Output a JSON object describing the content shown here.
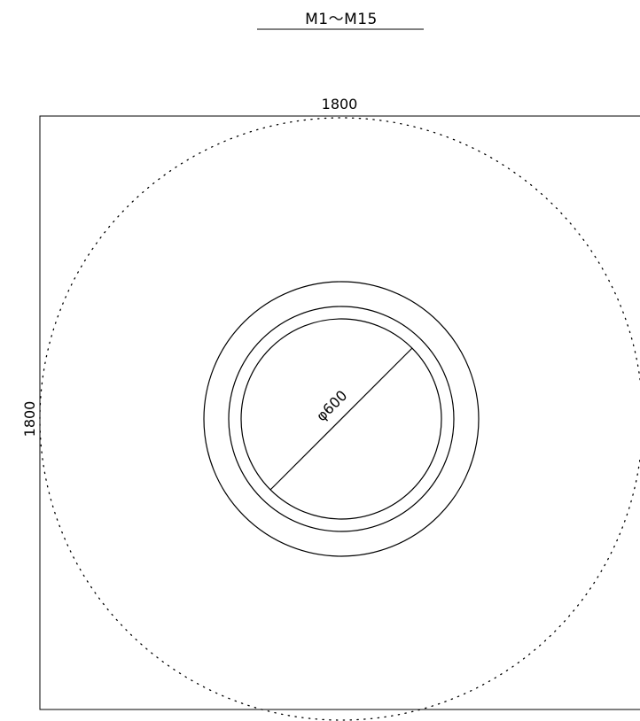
{
  "drawing": {
    "title": "M1～M15",
    "dimensions": {
      "width_label": "1800",
      "height_label": "1800",
      "diameter_label": "φ600"
    },
    "colors": {
      "line": "#000000",
      "background": "#ffffff"
    }
  }
}
